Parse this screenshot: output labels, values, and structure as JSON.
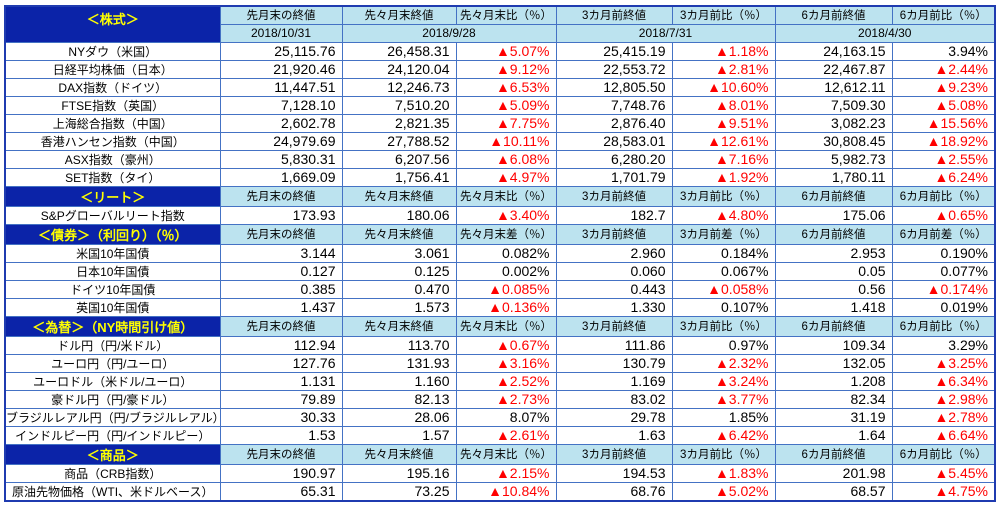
{
  "colors": {
    "section_header_bg": "#0b23a8",
    "section_header_text": "#ffff00",
    "column_header_bg": "#bce3ef",
    "negative_text": "#ff0000",
    "grid_border": "#4472c4"
  },
  "chart_data": {
    "type": "table",
    "negative_marker": "▲",
    "sections": [
      {
        "id": "stocks",
        "title": "＜株式＞",
        "headers": [
          "先月末の終値",
          "先々月末終値",
          "先々月末比（％）",
          "3カ月前終値",
          "3カ月前比（％）",
          "6カ月前終値",
          "6カ月前比（％）"
        ],
        "dates": [
          "2018/10/31",
          "2018/9/28",
          "2018/7/31",
          "2018/4/30"
        ],
        "rows": [
          {
            "label": "NYダウ（米国）",
            "values": [
              "25,115.76",
              "26,458.31",
              "▲5.07%",
              "25,415.19",
              "▲1.18%",
              "24,163.15",
              "3.94%"
            ]
          },
          {
            "label": "日経平均株価（日本）",
            "values": [
              "21,920.46",
              "24,120.04",
              "▲9.12%",
              "22,553.72",
              "▲2.81%",
              "22,467.87",
              "▲2.44%"
            ]
          },
          {
            "label": "DAX指数（ドイツ）",
            "values": [
              "11,447.51",
              "12,246.73",
              "▲6.53%",
              "12,805.50",
              "▲10.60%",
              "12,612.11",
              "▲9.23%"
            ]
          },
          {
            "label": "FTSE指数（英国）",
            "values": [
              "7,128.10",
              "7,510.20",
              "▲5.09%",
              "7,748.76",
              "▲8.01%",
              "7,509.30",
              "▲5.08%"
            ]
          },
          {
            "label": "上海総合指数（中国）",
            "values": [
              "2,602.78",
              "2,821.35",
              "▲7.75%",
              "2,876.40",
              "▲9.51%",
              "3,082.23",
              "▲15.56%"
            ]
          },
          {
            "label": "香港ハンセン指数（中国）",
            "values": [
              "24,979.69",
              "27,788.52",
              "▲10.11%",
              "28,583.01",
              "▲12.61%",
              "30,808.45",
              "▲18.92%"
            ]
          },
          {
            "label": "ASX指数（豪州）",
            "values": [
              "5,830.31",
              "6,207.56",
              "▲6.08%",
              "6,280.20",
              "▲7.16%",
              "5,982.73",
              "▲2.55%"
            ]
          },
          {
            "label": "SET指数（タイ）",
            "values": [
              "1,669.09",
              "1,756.41",
              "▲4.97%",
              "1,701.79",
              "▲1.92%",
              "1,780.11",
              "▲6.24%"
            ]
          }
        ]
      },
      {
        "id": "reit",
        "title": "＜リート＞",
        "headers": [
          "先月末の終値",
          "先々月末終値",
          "先々月末比（％）",
          "3カ月前終値",
          "3カ月前比（％）",
          "6カ月前終値",
          "6カ月前比（％）"
        ],
        "rows": [
          {
            "label": "S&Pグローバルリート指数",
            "values": [
              "173.93",
              "180.06",
              "▲3.40%",
              "182.7",
              "▲4.80%",
              "175.06",
              "▲0.65%"
            ]
          }
        ]
      },
      {
        "id": "bonds",
        "title": "＜債券＞（利回り）（％）",
        "headers": [
          "先月末の終値",
          "先々月末終値",
          "先々月末差（％）",
          "3カ月前終値",
          "3カ月前差（％）",
          "6カ月前終値",
          "6カ月前差（％）"
        ],
        "rows": [
          {
            "label": "米国10年国債",
            "values": [
              "3.144",
              "3.061",
              "0.082%",
              "2.960",
              "0.184%",
              "2.953",
              "0.190%"
            ]
          },
          {
            "label": "日本10年国債",
            "values": [
              "0.127",
              "0.125",
              "0.002%",
              "0.060",
              "0.067%",
              "0.05",
              "0.077%"
            ]
          },
          {
            "label": "ドイツ10年国債",
            "values": [
              "0.385",
              "0.470",
              "▲0.085%",
              "0.443",
              "▲0.058%",
              "0.56",
              "▲0.174%"
            ]
          },
          {
            "label": "英国10年国債",
            "values": [
              "1.437",
              "1.573",
              "▲0.136%",
              "1.330",
              "0.107%",
              "1.418",
              "0.019%"
            ]
          }
        ]
      },
      {
        "id": "fx",
        "title": "＜為替＞（NY時間引け値）",
        "headers": [
          "先月末の終値",
          "先々月末終値",
          "先々月末比（％）",
          "3カ月前終値",
          "3カ月前比（％）",
          "6カ月前終値",
          "6カ月前比（％）"
        ],
        "rows": [
          {
            "label": "ドル円（円/米ドル）",
            "values": [
              "112.94",
              "113.70",
              "▲0.67%",
              "111.86",
              "0.97%",
              "109.34",
              "3.29%"
            ]
          },
          {
            "label": "ユーロ円（円/ユーロ）",
            "values": [
              "127.76",
              "131.93",
              "▲3.16%",
              "130.79",
              "▲2.32%",
              "132.05",
              "▲3.25%"
            ]
          },
          {
            "label": "ユーロドル（米ドル/ユーロ）",
            "values": [
              "1.131",
              "1.160",
              "▲2.52%",
              "1.169",
              "▲3.24%",
              "1.208",
              "▲6.34%"
            ]
          },
          {
            "label": "豪ドル円（円/豪ドル）",
            "values": [
              "79.89",
              "82.13",
              "▲2.73%",
              "83.02",
              "▲3.77%",
              "82.34",
              "▲2.98%"
            ]
          },
          {
            "label": "ブラジルレアル円（円/ブラジルレアル）",
            "values": [
              "30.33",
              "28.06",
              "8.07%",
              "29.78",
              "1.85%",
              "31.19",
              "▲2.78%"
            ]
          },
          {
            "label": "インドルピー円（円/インドルピー）",
            "values": [
              "1.53",
              "1.57",
              "▲2.61%",
              "1.63",
              "▲6.42%",
              "1.64",
              "▲6.64%"
            ]
          }
        ]
      },
      {
        "id": "commodities",
        "title": "＜商品＞",
        "headers": [
          "先月末の終値",
          "先々月末終値",
          "先々月末比（％）",
          "3カ月前終値",
          "3カ月前比（％）",
          "6カ月前終値",
          "6カ月前比（％）"
        ],
        "rows": [
          {
            "label": "商品（CRB指数）",
            "values": [
              "190.97",
              "195.16",
              "▲2.15%",
              "194.53",
              "▲1.83%",
              "201.98",
              "▲5.45%"
            ]
          },
          {
            "label": "原油先物価格（WTI、米ドルベース）",
            "values": [
              "65.31",
              "73.25",
              "▲10.84%",
              "68.76",
              "▲5.02%",
              "68.57",
              "▲4.75%"
            ]
          }
        ]
      }
    ]
  }
}
